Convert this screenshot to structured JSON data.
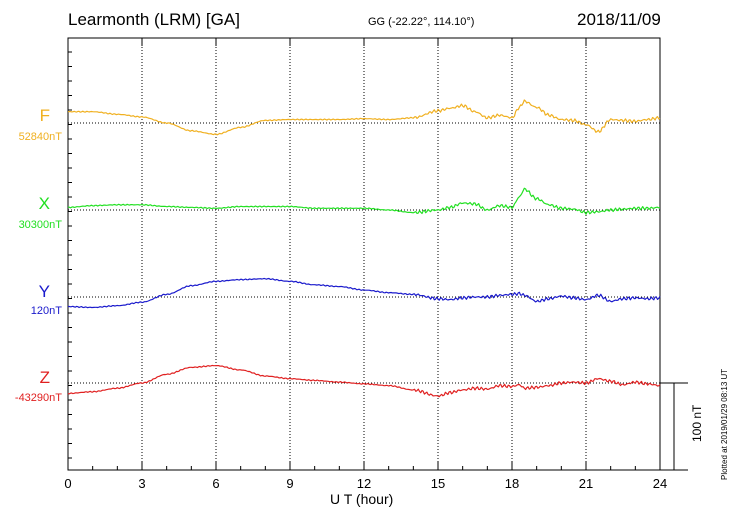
{
  "header": {
    "station": "Learmonth (LRM)  [GA]",
    "coords": "GG (-22.22°, 114.10°)",
    "date": "2018/11/09"
  },
  "footer": {
    "plotted": "Plotted at 2019/01/29 08:13 UT",
    "scale_label": "100 nT"
  },
  "chart_data": {
    "type": "line",
    "xlabel": "U T (hour)",
    "xlim": [
      0,
      24
    ],
    "xticks": [
      "0",
      "3",
      "6",
      "9",
      "12",
      "15",
      "18",
      "21",
      "24"
    ],
    "x": [
      0,
      1,
      2,
      3,
      4,
      5,
      6,
      7,
      8,
      9,
      10,
      11,
      12,
      13,
      14,
      15,
      15.5,
      16,
      16.5,
      17,
      17.5,
      18,
      18.3,
      18.5,
      19,
      19.5,
      20,
      20.5,
      21,
      21.5,
      22,
      22.5,
      23,
      23.5,
      24
    ],
    "unit": "nT",
    "scale_bar_nT": 100,
    "series": [
      {
        "name": "F",
        "baseline_label": "52840nT",
        "color": "#f0b020",
        "values": [
          13,
          13,
          10,
          7,
          0,
          -9,
          -13,
          -5,
          3,
          4,
          4,
          4,
          5,
          4,
          6,
          14,
          17,
          20,
          13,
          6,
          9,
          6,
          18,
          25,
          18,
          9,
          4,
          3,
          -2,
          -10,
          4,
          3,
          2,
          4,
          6
        ]
      },
      {
        "name": "X",
        "baseline_label": "30300nT",
        "color": "#22e022",
        "values": [
          3,
          5,
          6,
          6,
          4,
          3,
          2,
          4,
          4,
          4,
          2,
          2,
          2,
          0,
          -3,
          0,
          3,
          8,
          7,
          0,
          5,
          3,
          15,
          24,
          13,
          6,
          2,
          1,
          -3,
          -2,
          0,
          1,
          2,
          2,
          3
        ]
      },
      {
        "name": "Y",
        "baseline_label": "120nT",
        "color": "#1a1acc",
        "values": [
          -11,
          -12,
          -10,
          -6,
          3,
          13,
          18,
          20,
          21,
          18,
          14,
          12,
          8,
          5,
          3,
          -2,
          -3,
          -1,
          0,
          0,
          2,
          3,
          4,
          2,
          -5,
          -2,
          1,
          -1,
          -3,
          2,
          -5,
          -2,
          -1,
          -2,
          -1
        ]
      },
      {
        "name": "Z",
        "baseline_label": "-43290nT",
        "color": "#e02020",
        "values": [
          -12,
          -10,
          -6,
          0,
          10,
          18,
          20,
          15,
          8,
          5,
          3,
          1,
          -1,
          -3,
          -8,
          -15,
          -11,
          -8,
          -6,
          -7,
          -3,
          -4,
          -2,
          -6,
          -5,
          -3,
          0,
          1,
          0,
          5,
          2,
          -2,
          1,
          -1,
          -3
        ]
      }
    ]
  }
}
